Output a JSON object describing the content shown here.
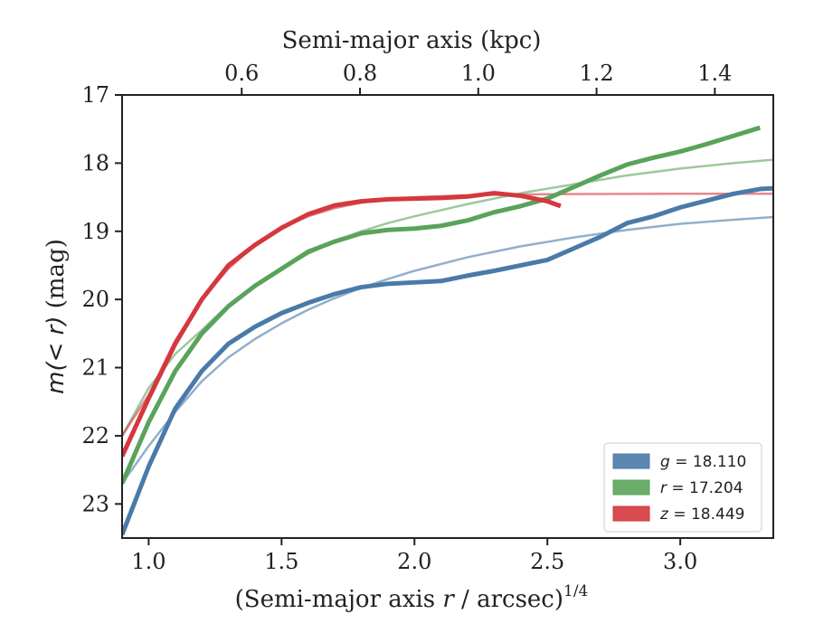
{
  "chart_data": {
    "type": "line",
    "x_axis": {
      "label_prefix": "(Semi-major axis ",
      "label_var": "r",
      "label_mid": " / arcsec)",
      "label_sup": "1/4",
      "range": [
        0.9,
        3.35
      ],
      "ticks": [
        1.0,
        1.5,
        2.0,
        2.5,
        3.0
      ],
      "tick_labels": [
        "1.0",
        "1.5",
        "2.0",
        "2.5",
        "3.0"
      ]
    },
    "top_axis": {
      "label": "Semi-major axis (kpc)",
      "ticks_at_x": [
        1.35,
        1.795,
        2.24,
        2.685,
        3.13
      ],
      "tick_labels": [
        "0.6",
        "0.8",
        "1.0",
        "1.2",
        "1.4"
      ]
    },
    "y_axis": {
      "label_var": "m(< r)",
      "label_unit": " (mag)",
      "range": [
        23.5,
        17.0
      ],
      "inverted": true,
      "ticks": [
        17,
        18,
        19,
        20,
        21,
        22,
        23
      ],
      "tick_labels": [
        "17",
        "18",
        "19",
        "20",
        "21",
        "22",
        "23"
      ]
    },
    "legend": {
      "position": "lower-right",
      "entries": [
        {
          "var": "g",
          "text": " = 18.110",
          "color": "#4a7aa8"
        },
        {
          "var": "r",
          "text": " = 17.204",
          "color": "#5aa35a"
        },
        {
          "var": "z",
          "text": " = 18.449",
          "color": "#d4383e"
        }
      ]
    },
    "series": [
      {
        "band": "g",
        "color": "#4a7aa8",
        "data": [
          [
            0.9,
            23.45
          ],
          [
            1.0,
            22.45
          ],
          [
            1.1,
            21.6
          ],
          [
            1.2,
            21.05
          ],
          [
            1.3,
            20.65
          ],
          [
            1.4,
            20.4
          ],
          [
            1.5,
            20.2
          ],
          [
            1.6,
            20.05
          ],
          [
            1.7,
            19.92
          ],
          [
            1.8,
            19.82
          ],
          [
            1.9,
            19.77
          ],
          [
            2.0,
            19.75
          ],
          [
            2.1,
            19.73
          ],
          [
            2.2,
            19.65
          ],
          [
            2.3,
            19.58
          ],
          [
            2.4,
            19.5
          ],
          [
            2.5,
            19.42
          ],
          [
            2.6,
            19.25
          ],
          [
            2.7,
            19.08
          ],
          [
            2.8,
            18.88
          ],
          [
            2.9,
            18.78
          ],
          [
            3.0,
            18.65
          ],
          [
            3.1,
            18.55
          ],
          [
            3.2,
            18.45
          ],
          [
            3.3,
            18.38
          ],
          [
            3.35,
            18.37
          ]
        ],
        "model": [
          [
            0.9,
            22.7
          ],
          [
            1.0,
            22.15
          ],
          [
            1.1,
            21.65
          ],
          [
            1.2,
            21.2
          ],
          [
            1.3,
            20.85
          ],
          [
            1.4,
            20.58
          ],
          [
            1.5,
            20.35
          ],
          [
            1.6,
            20.15
          ],
          [
            1.7,
            19.98
          ],
          [
            1.8,
            19.83
          ],
          [
            1.9,
            19.7
          ],
          [
            2.0,
            19.58
          ],
          [
            2.2,
            19.38
          ],
          [
            2.4,
            19.22
          ],
          [
            2.6,
            19.09
          ],
          [
            2.8,
            18.98
          ],
          [
            3.0,
            18.89
          ],
          [
            3.2,
            18.83
          ],
          [
            3.35,
            18.79
          ]
        ]
      },
      {
        "band": "r",
        "color": "#5aa35a",
        "data": [
          [
            0.9,
            22.7
          ],
          [
            1.0,
            21.8
          ],
          [
            1.1,
            21.05
          ],
          [
            1.2,
            20.5
          ],
          [
            1.3,
            20.1
          ],
          [
            1.4,
            19.8
          ],
          [
            1.5,
            19.55
          ],
          [
            1.6,
            19.3
          ],
          [
            1.7,
            19.15
          ],
          [
            1.8,
            19.03
          ],
          [
            1.9,
            18.98
          ],
          [
            2.0,
            18.96
          ],
          [
            2.1,
            18.92
          ],
          [
            2.2,
            18.84
          ],
          [
            2.3,
            18.72
          ],
          [
            2.4,
            18.63
          ],
          [
            2.5,
            18.52
          ],
          [
            2.6,
            18.35
          ],
          [
            2.7,
            18.18
          ],
          [
            2.8,
            18.02
          ],
          [
            2.9,
            17.92
          ],
          [
            3.0,
            17.83
          ],
          [
            3.1,
            17.72
          ],
          [
            3.2,
            17.6
          ],
          [
            3.3,
            17.48
          ]
        ],
        "model": [
          [
            0.9,
            22.0
          ],
          [
            1.0,
            21.3
          ],
          [
            1.1,
            20.8
          ],
          [
            1.2,
            20.45
          ],
          [
            1.3,
            20.08
          ],
          [
            1.4,
            19.8
          ],
          [
            1.5,
            19.55
          ],
          [
            1.6,
            19.33
          ],
          [
            1.7,
            19.15
          ],
          [
            1.8,
            19.0
          ],
          [
            1.9,
            18.88
          ],
          [
            2.0,
            18.78
          ],
          [
            2.2,
            18.6
          ],
          [
            2.4,
            18.44
          ],
          [
            2.6,
            18.31
          ],
          [
            2.8,
            18.18
          ],
          [
            3.0,
            18.08
          ],
          [
            3.2,
            18.0
          ],
          [
            3.35,
            17.95
          ]
        ]
      },
      {
        "band": "z",
        "color": "#d4383e",
        "data": [
          [
            0.9,
            22.3
          ],
          [
            1.0,
            21.45
          ],
          [
            1.1,
            20.65
          ],
          [
            1.2,
            20.0
          ],
          [
            1.3,
            19.5
          ],
          [
            1.4,
            19.2
          ],
          [
            1.5,
            18.95
          ],
          [
            1.6,
            18.75
          ],
          [
            1.7,
            18.62
          ],
          [
            1.8,
            18.56
          ],
          [
            1.9,
            18.53
          ],
          [
            2.0,
            18.52
          ],
          [
            2.1,
            18.51
          ],
          [
            2.2,
            18.49
          ],
          [
            2.3,
            18.44
          ],
          [
            2.4,
            18.48
          ],
          [
            2.5,
            18.56
          ],
          [
            2.55,
            18.63
          ]
        ],
        "model": [
          [
            0.9,
            22.0
          ],
          [
            1.0,
            21.4
          ],
          [
            1.1,
            20.6
          ],
          [
            1.2,
            20.0
          ],
          [
            1.3,
            19.55
          ],
          [
            1.4,
            19.2
          ],
          [
            1.5,
            18.95
          ],
          [
            1.6,
            18.78
          ],
          [
            1.7,
            18.66
          ],
          [
            1.8,
            18.58
          ],
          [
            1.9,
            18.53
          ],
          [
            2.0,
            18.5
          ],
          [
            2.2,
            18.47
          ],
          [
            2.4,
            18.46
          ],
          [
            2.6,
            18.455
          ],
          [
            3.0,
            18.45
          ],
          [
            3.35,
            18.449
          ]
        ]
      }
    ]
  }
}
